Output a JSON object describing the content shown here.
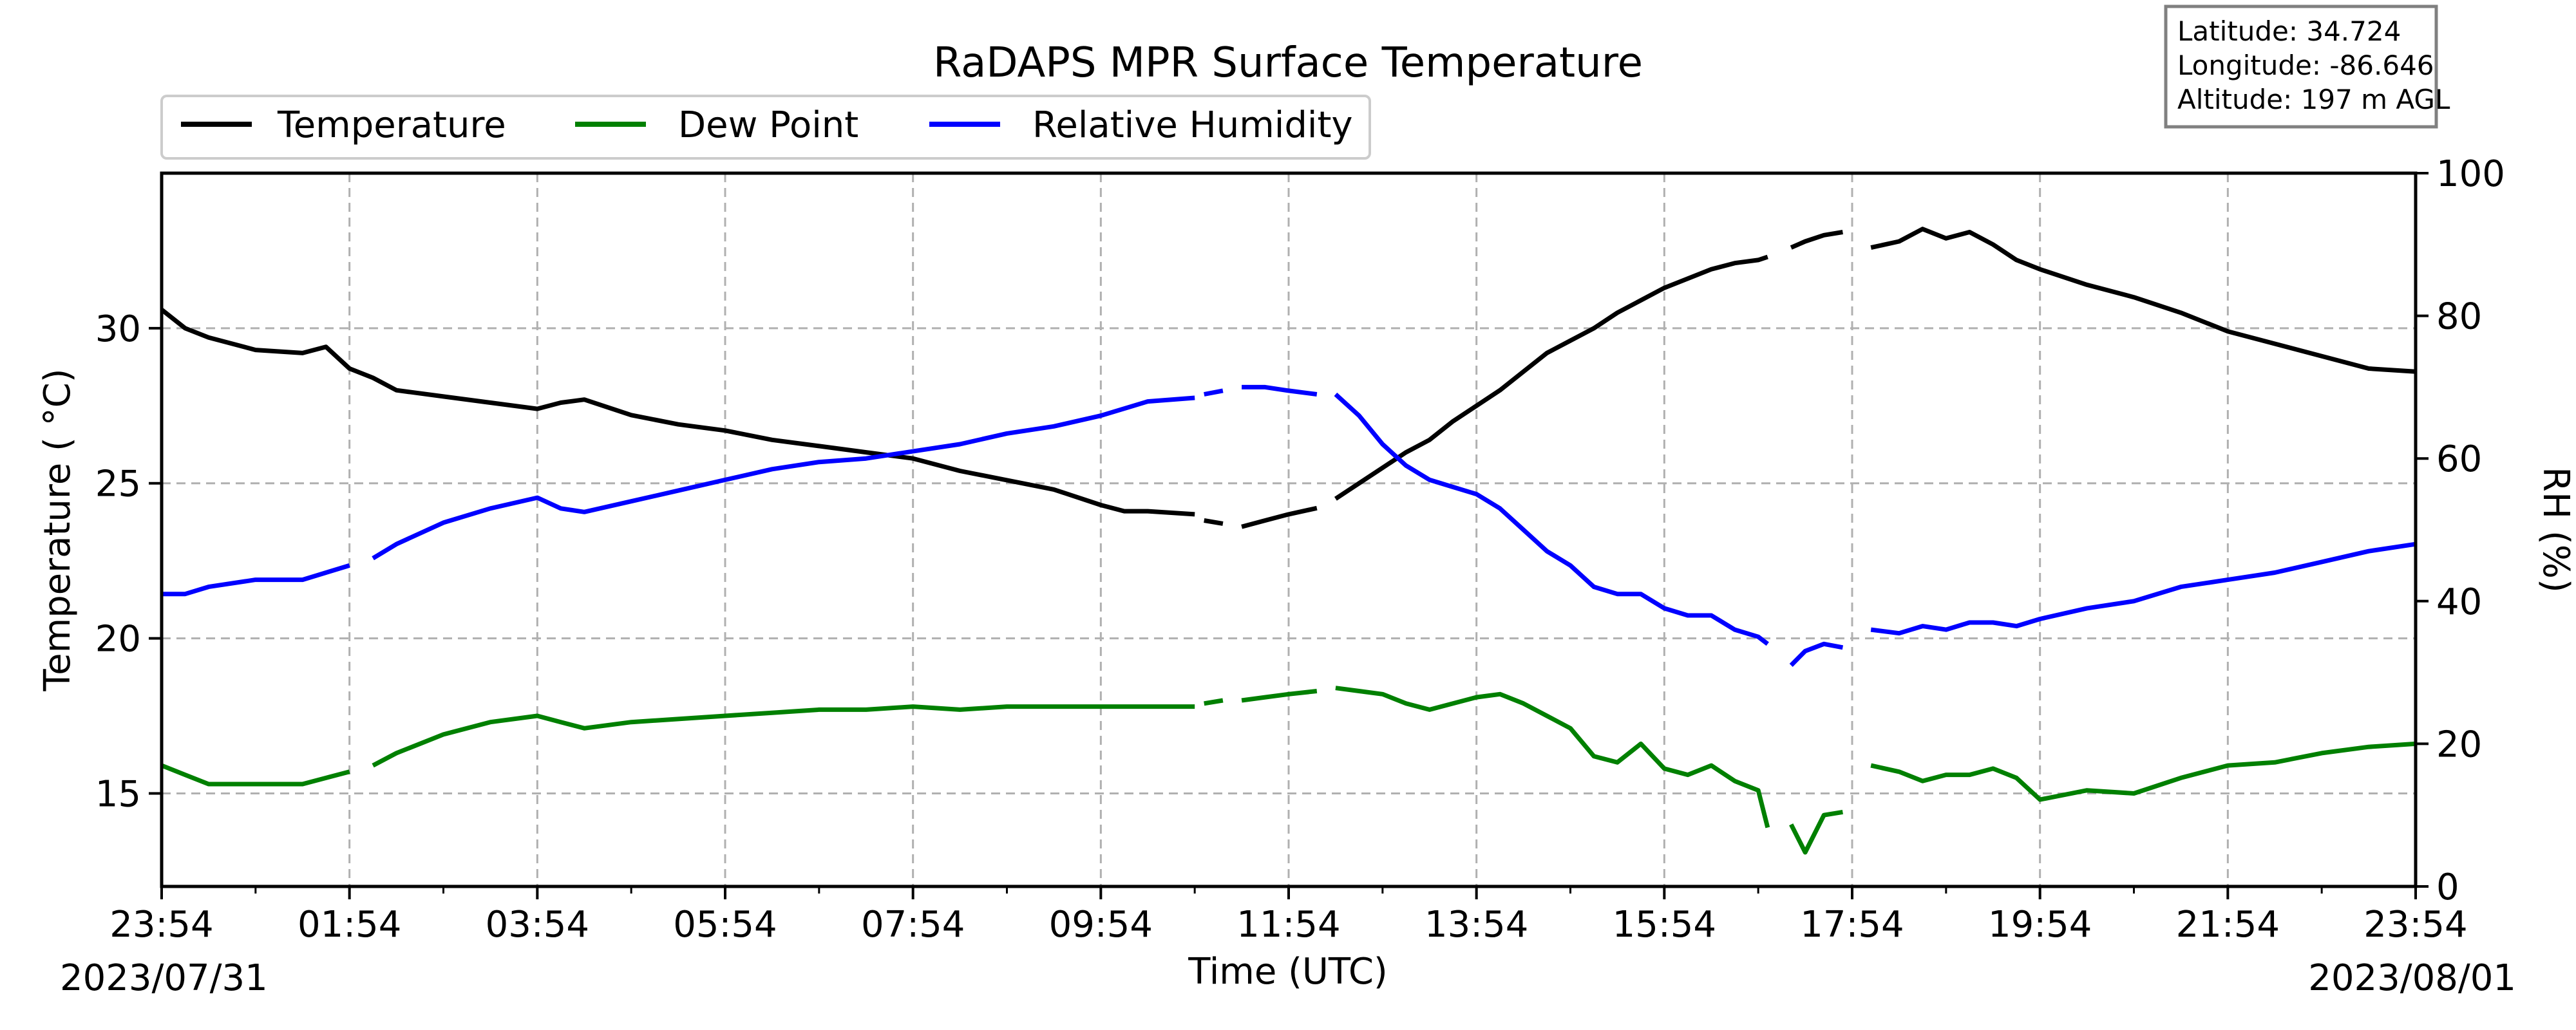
{
  "chart_data": {
    "type": "line",
    "title": "RaDAPS MPR Surface Temperature",
    "xlabel": "Time (UTC)",
    "ylabel": "Temperature ($^\\circ$C)",
    "ylabel_display": "Temperature ( °C)",
    "y2label": "RH (%)",
    "x_tick_labels": [
      "23:54",
      "01:54",
      "03:54",
      "05:54",
      "07:54",
      "09:54",
      "11:54",
      "13:54",
      "15:54",
      "17:54",
      "19:54",
      "21:54",
      "23:54"
    ],
    "x_hours_from_start": [
      0,
      2,
      4,
      6,
      8,
      10,
      12,
      14,
      16,
      18,
      20,
      22,
      24
    ],
    "start_date": "2023/07/31",
    "end_date": "2023/08/01",
    "xlim": [
      0,
      24
    ],
    "ylim": [
      12,
      35
    ],
    "y_ticks": [
      15,
      20,
      25,
      30
    ],
    "y2lim": [
      0,
      100
    ],
    "y2_ticks": [
      0,
      20,
      40,
      60,
      80,
      100
    ],
    "grid": true,
    "legend": {
      "placement": "above-top-left",
      "entries": [
        "Temperature",
        "Dew Point",
        "Relative Humidity"
      ]
    },
    "info_box": {
      "latitude": "Latitude: 34.724",
      "longitude": "Longitude: -86.646",
      "altitude": "Altitude: 197 m AGL"
    },
    "colors": {
      "temperature": "#000000",
      "dew_point": "#008000",
      "relative_humidity": "#0000ff"
    },
    "series": [
      {
        "name": "Temperature",
        "axis": "left",
        "color": "#000000",
        "segments": [
          {
            "x": [
              0,
              0.25,
              0.5,
              1.0,
              1.5,
              1.75,
              2.0,
              2.25,
              2.5,
              3.0,
              3.5,
              4.0,
              4.25,
              4.5,
              5.0,
              5.5,
              6.0,
              6.5,
              7.0,
              7.5,
              8.0,
              8.5,
              9.0,
              9.5,
              10.0,
              10.25,
              10.5,
              11.0
            ],
            "y": [
              30.6,
              30.0,
              29.7,
              29.3,
              29.2,
              29.4,
              28.7,
              28.4,
              28.0,
              27.8,
              27.6,
              27.4,
              27.6,
              27.7,
              27.2,
              26.9,
              26.7,
              26.4,
              26.2,
              26.0,
              25.8,
              25.4,
              25.1,
              24.8,
              24.3,
              24.1,
              24.1,
              24.0
            ]
          },
          {
            "x": [
              11.1,
              11.3
            ],
            "y": [
              23.8,
              23.7
            ]
          },
          {
            "x": [
              11.5,
              11.75,
              12.0,
              12.3
            ],
            "y": [
              23.6,
              23.8,
              24.0,
              24.2
            ]
          },
          {
            "x": [
              12.5,
              12.75,
              13.0,
              13.25,
              13.5,
              13.75,
              14.0,
              14.25,
              14.5,
              14.75,
              15.0,
              15.25,
              15.5,
              15.75,
              16.0,
              16.25,
              16.5,
              16.75,
              17.0,
              17.1
            ],
            "y": [
              24.5,
              25.0,
              25.5,
              26.0,
              26.4,
              27.0,
              27.5,
              28.0,
              28.6,
              29.2,
              29.6,
              30.0,
              30.5,
              30.9,
              31.3,
              31.6,
              31.9,
              32.1,
              32.2,
              32.3
            ]
          },
          {
            "x": [
              17.35,
              17.5,
              17.7,
              17.9
            ],
            "y": [
              32.6,
              32.8,
              33.0,
              33.1
            ]
          },
          {
            "x": [
              18.2,
              18.5,
              18.75,
              19.0,
              19.25,
              19.5,
              19.75,
              20.0,
              20.5,
              21.0,
              21.5,
              22.0,
              22.5,
              23.0,
              23.5,
              24.0
            ],
            "y": [
              32.6,
              32.8,
              33.2,
              32.9,
              33.1,
              32.7,
              32.2,
              31.9,
              31.4,
              31.0,
              30.5,
              29.9,
              29.5,
              29.1,
              28.7,
              28.6
            ]
          }
        ]
      },
      {
        "name": "Dew Point",
        "axis": "left",
        "color": "#008000",
        "segments": [
          {
            "x": [
              0,
              0.25,
              0.5,
              1.0,
              1.5,
              1.75,
              2.0
            ],
            "y": [
              15.9,
              15.6,
              15.3,
              15.3,
              15.3,
              15.5,
              15.7
            ]
          },
          {
            "x": [
              2.25,
              2.5,
              3.0,
              3.5,
              4.0,
              4.25,
              4.5,
              5.0,
              5.5,
              6.0,
              6.5,
              7.0,
              7.5,
              8.0,
              8.5,
              9.0,
              9.5,
              10.0,
              10.5,
              11.0
            ],
            "y": [
              15.9,
              16.3,
              16.9,
              17.3,
              17.5,
              17.3,
              17.1,
              17.3,
              17.4,
              17.5,
              17.6,
              17.7,
              17.7,
              17.8,
              17.7,
              17.8,
              17.8,
              17.8,
              17.8,
              17.8
            ]
          },
          {
            "x": [
              11.1,
              11.3
            ],
            "y": [
              17.9,
              18.0
            ]
          },
          {
            "x": [
              11.5,
              11.75,
              12.0,
              12.3
            ],
            "y": [
              18.0,
              18.1,
              18.2,
              18.3
            ]
          },
          {
            "x": [
              12.5,
              12.75,
              13.0,
              13.25,
              13.5,
              13.75,
              14.0,
              14.25,
              14.5,
              14.75,
              15.0,
              15.25,
              15.5,
              15.75,
              16.0,
              16.25,
              16.5,
              16.75,
              17.0,
              17.1
            ],
            "y": [
              18.4,
              18.3,
              18.2,
              17.9,
              17.7,
              17.9,
              18.1,
              18.2,
              17.9,
              17.5,
              17.1,
              16.2,
              16.0,
              16.6,
              15.8,
              15.6,
              15.9,
              15.4,
              15.1,
              13.9
            ]
          },
          {
            "x": [
              17.35,
              17.5,
              17.7,
              17.9
            ],
            "y": [
              14.0,
              13.1,
              14.3,
              14.4
            ]
          },
          {
            "x": [
              18.2,
              18.5,
              18.75,
              19.0,
              19.25,
              19.5,
              19.75,
              20.0,
              20.5,
              21.0,
              21.5,
              22.0,
              22.5,
              23.0,
              23.5,
              24.0
            ],
            "y": [
              15.9,
              15.7,
              15.4,
              15.6,
              15.6,
              15.8,
              15.5,
              14.8,
              15.1,
              15.0,
              15.5,
              15.9,
              16.0,
              16.3,
              16.5,
              16.6
            ]
          }
        ]
      },
      {
        "name": "Relative Humidity",
        "axis": "right",
        "color": "#0000ff",
        "segments": [
          {
            "x": [
              0,
              0.25,
              0.5,
              1.0,
              1.5,
              1.75,
              2.0
            ],
            "y": [
              41.0,
              41.0,
              42.0,
              43.0,
              43.0,
              44.0,
              45.0
            ]
          },
          {
            "x": [
              2.25,
              2.5,
              3.0,
              3.5,
              4.0,
              4.25,
              4.5,
              5.0,
              5.5,
              6.0,
              6.5,
              7.0,
              7.5,
              8.0,
              8.5,
              9.0,
              9.5,
              10.0,
              10.5,
              11.0
            ],
            "y": [
              46.0,
              48.0,
              51.0,
              53.0,
              54.5,
              53.0,
              52.5,
              54.0,
              55.5,
              57.0,
              58.5,
              59.5,
              60.0,
              61.0,
              62.0,
              63.5,
              64.5,
              66.0,
              68.0,
              68.5
            ]
          },
          {
            "x": [
              11.1,
              11.3
            ],
            "y": [
              69.0,
              69.5
            ]
          },
          {
            "x": [
              11.5,
              11.75,
              12.0,
              12.3
            ],
            "y": [
              70.0,
              70.0,
              69.5,
              69.0
            ]
          },
          {
            "x": [
              12.5,
              12.75,
              13.0,
              13.25,
              13.5,
              13.75,
              14.0,
              14.25,
              14.5,
              14.75,
              15.0,
              15.25,
              15.5,
              15.75,
              16.0,
              16.25,
              16.5,
              16.75,
              17.0,
              17.1
            ],
            "y": [
              69.0,
              66.0,
              62.0,
              59.0,
              57.0,
              56.0,
              55.0,
              53.0,
              50.0,
              47.0,
              45.0,
              42.0,
              41.0,
              41.0,
              39.0,
              38.0,
              38.0,
              36.0,
              35.0,
              34.0
            ]
          },
          {
            "x": [
              17.35,
              17.5,
              17.7,
              17.9
            ],
            "y": [
              31.0,
              33.0,
              34.0,
              33.5
            ]
          },
          {
            "x": [
              18.2,
              18.5,
              18.75,
              19.0,
              19.25,
              19.5,
              19.75,
              20.0,
              20.5,
              21.0,
              21.5,
              22.0,
              22.5,
              23.0,
              23.5,
              24.0
            ],
            "y": [
              36.0,
              35.5,
              36.5,
              36.0,
              37.0,
              37.0,
              36.5,
              37.5,
              39.0,
              40.0,
              42.0,
              43.0,
              44.0,
              45.5,
              47.0,
              48.0
            ]
          }
        ]
      }
    ]
  }
}
